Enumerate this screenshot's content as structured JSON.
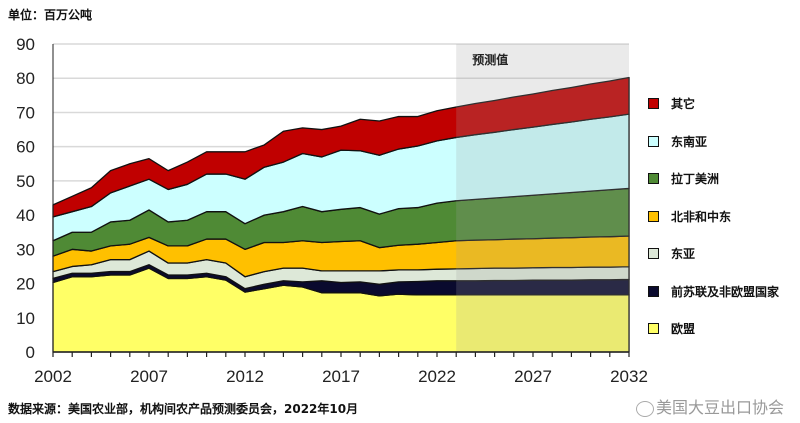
{
  "unit_label": "单位：百万公吨",
  "source": "数据来源：美国农业部，机构间农产品预测委员会，2022年10月",
  "watermark": "美国大豆出口协会",
  "forecast_label": "预测值",
  "chart_data": {
    "type": "area",
    "stacked": true,
    "ylim": [
      0,
      90
    ],
    "yticks": [
      0,
      10,
      20,
      30,
      40,
      50,
      60,
      70,
      80,
      90
    ],
    "xlim": [
      2002,
      2032
    ],
    "xticks": [
      2002,
      2007,
      2012,
      2017,
      2022,
      2027,
      2032
    ],
    "grid": true,
    "legend_position": "right",
    "forecast_range": [
      2023,
      2032
    ],
    "x": [
      2002,
      2003,
      2004,
      2005,
      2006,
      2007,
      2008,
      2009,
      2010,
      2011,
      2012,
      2013,
      2014,
      2015,
      2016,
      2017,
      2018,
      2019,
      2020,
      2021,
      2022,
      2023,
      2024,
      2025,
      2026,
      2027,
      2028,
      2029,
      2030,
      2031,
      2032
    ],
    "series": [
      {
        "name": "欧盟",
        "color": "#FFFF66",
        "values": [
          20.3,
          22,
          22,
          22.5,
          22.5,
          24.5,
          21.5,
          21.5,
          22,
          21,
          17.5,
          18.5,
          19.5,
          19,
          17.3,
          17.3,
          17.3,
          16.4,
          16.9,
          16.7,
          16.7,
          16.7,
          16.7,
          16.7,
          16.7,
          16.7,
          16.7,
          16.7,
          16.7,
          16.7,
          16.7
        ]
      },
      {
        "name": "前苏联及非欧盟国家",
        "color": "#0A0A2E",
        "values": [
          1.2,
          1,
          1,
          1,
          1,
          1,
          1,
          1,
          1,
          1,
          1,
          1.3,
          1.3,
          1.5,
          3.5,
          3,
          3.2,
          3.4,
          3.6,
          3.9,
          4.1,
          4.1,
          4.1,
          4.2,
          4.2,
          4.3,
          4.3,
          4.3,
          4.4,
          4.4,
          4.5
        ]
      },
      {
        "name": "东亚",
        "color": "#DDE8D8",
        "values": [
          2,
          2,
          2.5,
          3.5,
          3.5,
          4,
          3.5,
          3.5,
          4,
          4,
          3.5,
          3.7,
          3.7,
          4,
          2.9,
          3.4,
          3.2,
          3.9,
          3.5,
          3.4,
          3.4,
          3.5,
          3.6,
          3.6,
          3.6,
          3.6,
          3.7,
          3.7,
          3.7,
          3.7,
          3.7
        ]
      },
      {
        "name": "北非和中东",
        "color": "#FFC000",
        "values": [
          4.5,
          5,
          4,
          4,
          4.5,
          4,
          5,
          5,
          6,
          7,
          8,
          8.5,
          7.5,
          8,
          8.3,
          8.6,
          8.8,
          6.8,
          7.2,
          7.5,
          7.8,
          8.2,
          8.3,
          8.3,
          8.5,
          8.5,
          8.6,
          8.7,
          8.8,
          8.9,
          9
        ]
      },
      {
        "name": "拉丁美洲",
        "color": "#4F8A35",
        "values": [
          4.5,
          5,
          5.5,
          7,
          7,
          8,
          7,
          7.5,
          8,
          8,
          7.5,
          8,
          9,
          10,
          9,
          9.4,
          9.7,
          9.8,
          10.7,
          10.7,
          11.5,
          11.7,
          11.9,
          12.2,
          12.4,
          12.7,
          12.9,
          13.2,
          13.4,
          13.7,
          13.9
        ]
      },
      {
        "name": "东南亚",
        "color": "#CCFFFF",
        "values": [
          7,
          6,
          7.5,
          8.5,
          10,
          9,
          9.5,
          10.5,
          11,
          11,
          13,
          14,
          14.5,
          15.5,
          16,
          17.3,
          16.6,
          17.2,
          17.4,
          18,
          18.2,
          18.5,
          18.9,
          19.2,
          19.6,
          19.9,
          20.3,
          20.6,
          21,
          21.3,
          21.7
        ]
      },
      {
        "name": "其它",
        "color": "#C00000",
        "values": [
          3.5,
          4.5,
          5.5,
          6.5,
          6.5,
          6,
          5.5,
          6.5,
          6.5,
          6.5,
          8,
          6.5,
          9,
          7.5,
          8,
          7,
          9.2,
          10,
          9.5,
          8.6,
          8.8,
          8.9,
          9.1,
          9.3,
          9.5,
          9.7,
          9.9,
          10.1,
          10.3,
          10.5,
          10.7
        ]
      }
    ]
  }
}
